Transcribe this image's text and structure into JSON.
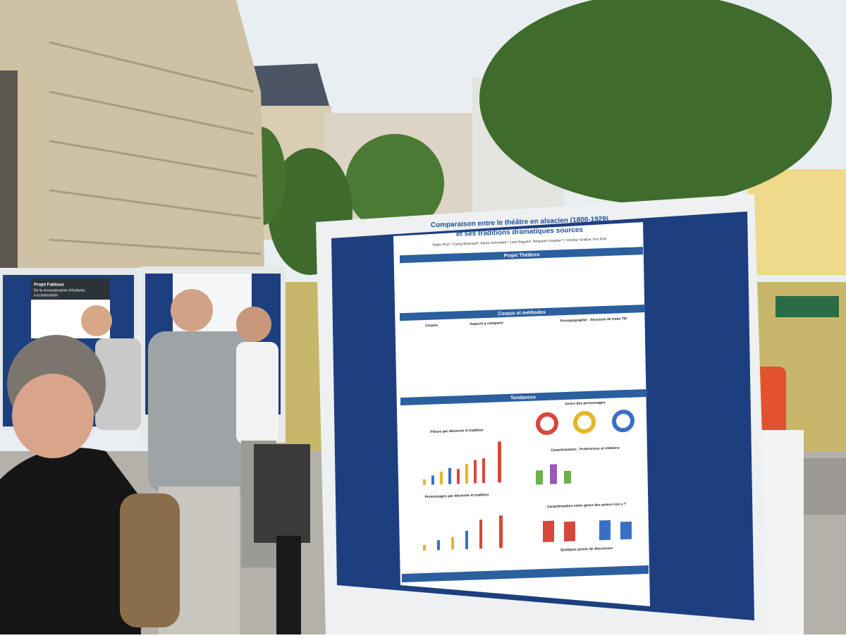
{
  "poster": {
    "title_line1": "Comparaison entre le théâtre en alsacien (1800-1929)",
    "title_line2": "et ses traditions dramatiques sources",
    "authors": "Pablo Ruiz¹, Fanny Boisnard¹, Alexia Schneider¹, Lara Nugues², Benjamin Krautter³ | ¹Unistra ²UniBas ³Uni Köln",
    "sections": [
      "Projet Théâtres",
      "Corpus et méthodes",
      "Tendances"
    ],
    "subheadings": [
      "Corpus",
      "Aspects à comparer",
      "Prosopographie : Structure de traits TEI",
      "Genre des personnages",
      "Pièces par décennie et tradition",
      "Caractérisation : Professions et relations",
      "Personnages par décennie et tradition",
      "Caractérisation selon genre des auteur·rice·s ?",
      "Quelques points de discussion"
    ]
  },
  "left_poster": {
    "title": "Projet Fabliaux",
    "subtitle_line1": "De la reconnaissance d'écritures",
    "subtitle_line2": "à la textométrie"
  }
}
